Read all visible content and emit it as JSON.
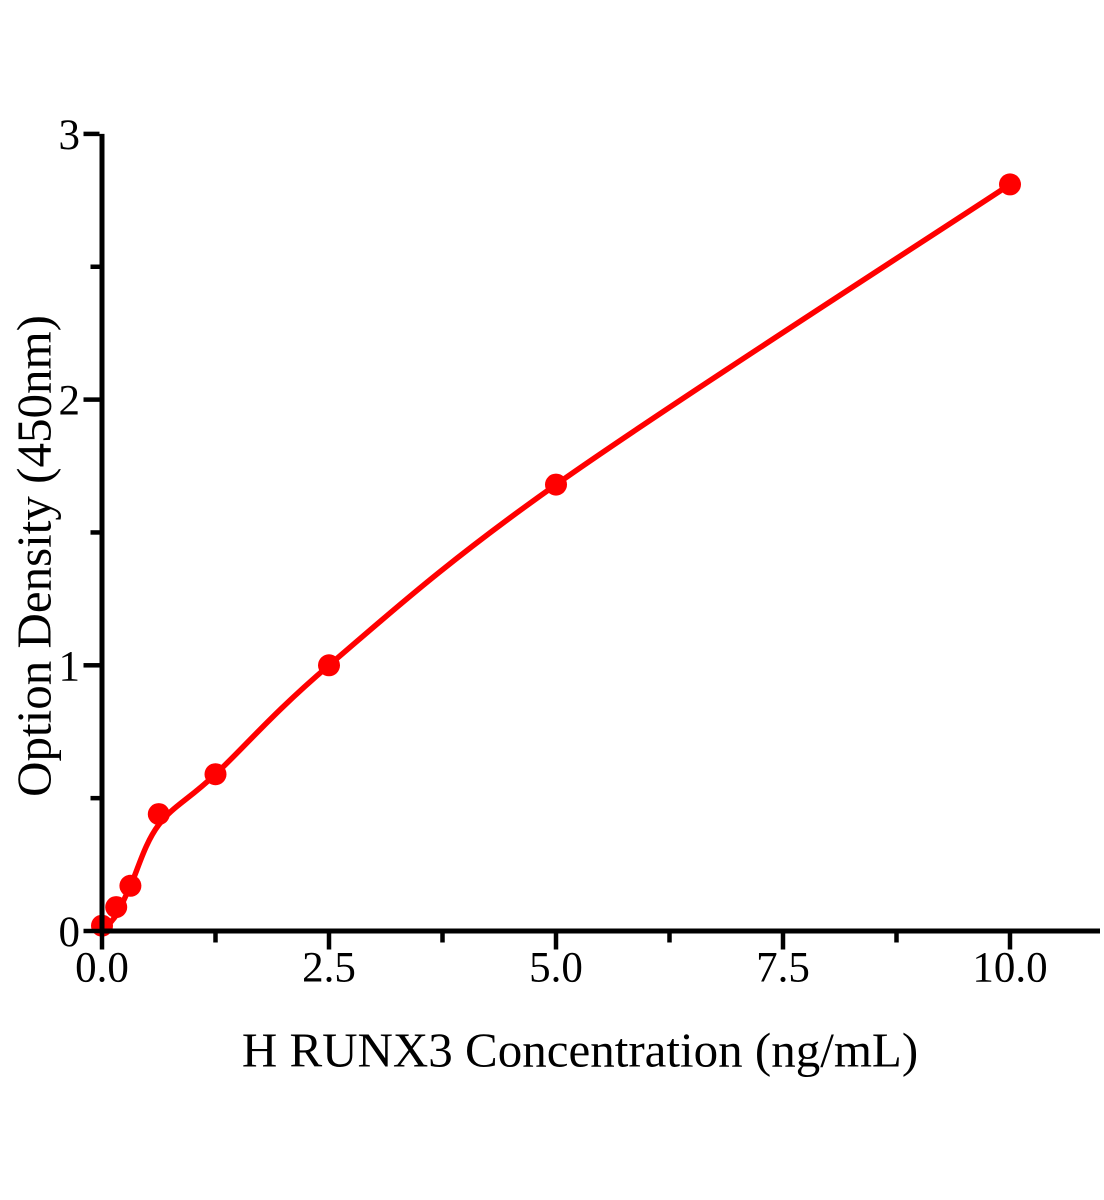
{
  "figure": {
    "background": "#FFFFFF",
    "description": "ELISA standard curve scatter plot with fitted line"
  },
  "chart_data": {
    "type": "scatter",
    "title": "",
    "xlabel": "H RUNX3 Concentration（ng/mL）",
    "ylabel": "Option Density（450nm）",
    "x": [
      0,
      0.156,
      0.313,
      0.625,
      1.25,
      2.5,
      5,
      10
    ],
    "y": [
      0.02,
      0.09,
      0.17,
      0.44,
      0.59,
      1.0,
      1.68,
      2.81
    ],
    "fit_line": [
      [
        0,
        0.0
      ],
      [
        0.156,
        0.06
      ],
      [
        0.313,
        0.17
      ],
      [
        0.625,
        0.4
      ],
      [
        1.25,
        0.59
      ],
      [
        2.5,
        1.0
      ],
      [
        5,
        1.68
      ],
      [
        10,
        2.81
      ]
    ],
    "xlim": [
      0,
      11
    ],
    "ylim": [
      0,
      3
    ],
    "x_major_ticks": [
      0,
      2.5,
      5,
      7.5,
      10
    ],
    "x_major_tick_labels": [
      "0.0",
      "2.5",
      "5.0",
      "7.5",
      "10.0"
    ],
    "x_minor_ticks": [
      1.25,
      3.75,
      6.25,
      8.75
    ],
    "y_major_ticks": [
      0,
      1,
      2,
      3
    ],
    "y_major_tick_labels": [
      "0",
      "1",
      "2",
      "3"
    ],
    "y_minor_ticks": [
      0.5,
      1.5,
      2.5
    ],
    "grid": false,
    "legend": null,
    "colors": {
      "curve": "#FF0000",
      "marker": "#FF0000",
      "axis": "#000000",
      "tick_label": "#000000"
    }
  }
}
